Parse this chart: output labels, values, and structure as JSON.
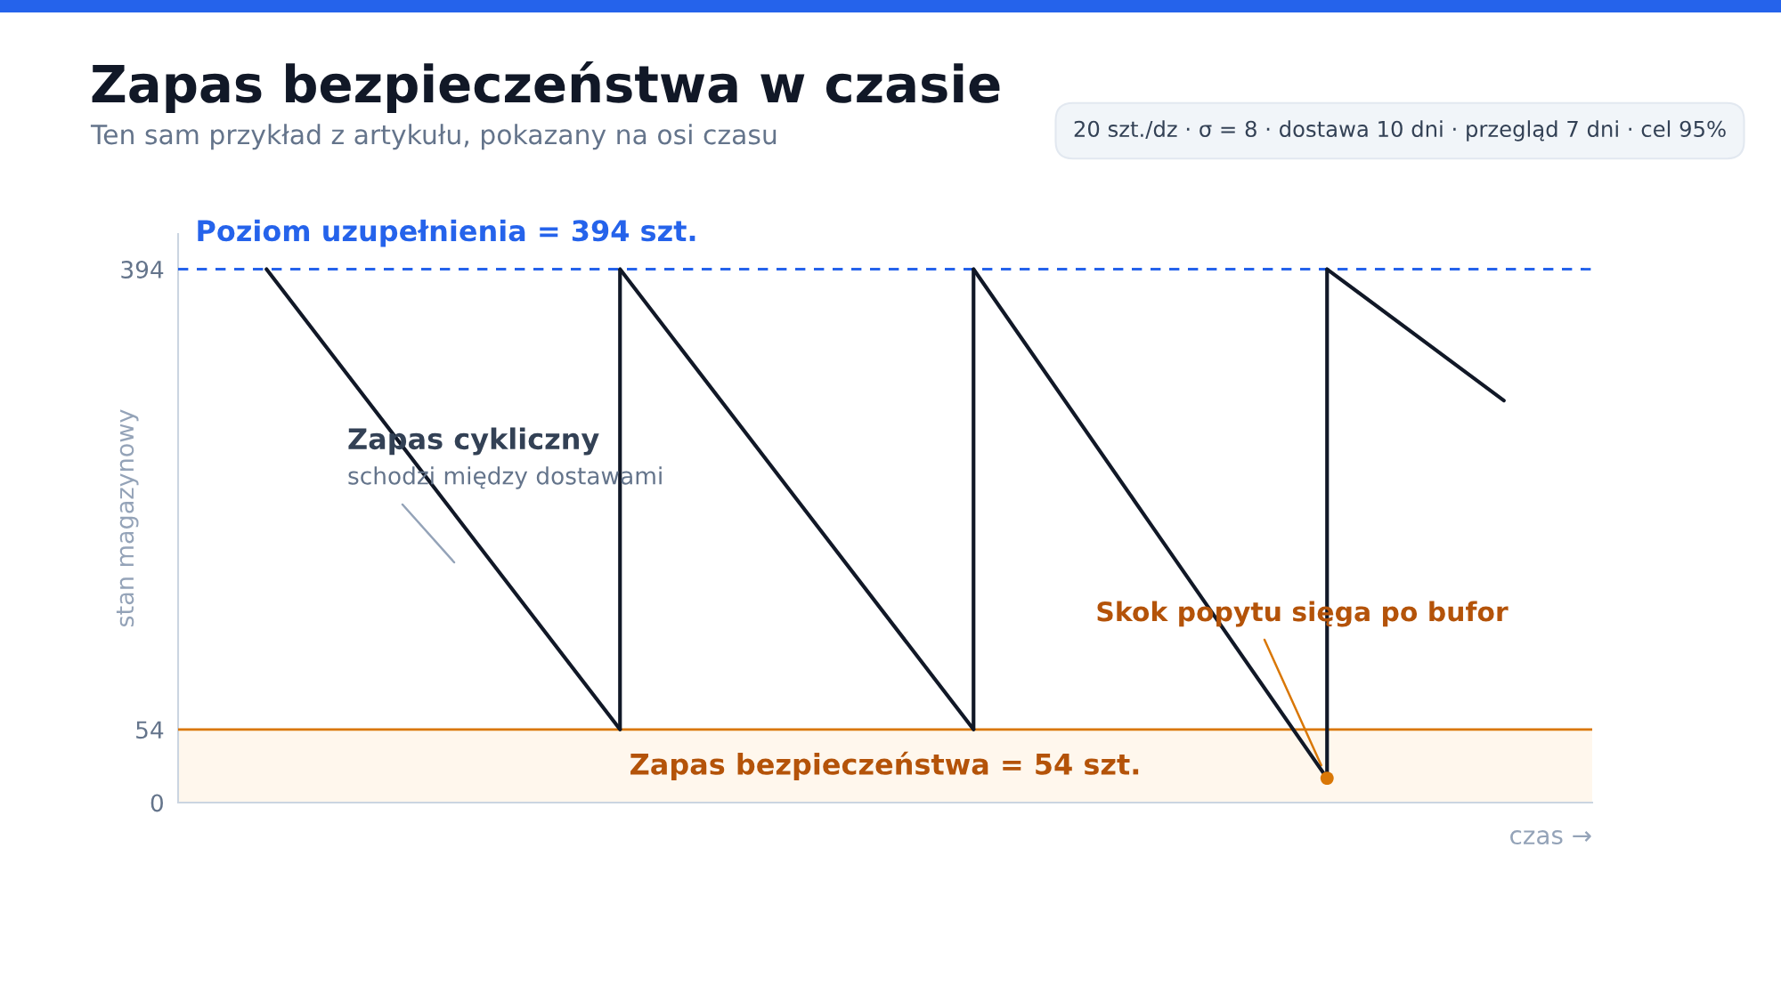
{
  "chart_data": {
    "type": "line",
    "title": "Zapas bezpieczeństwa w czasie",
    "subtitle": "Ten sam przykład z artykułu, pokazany na osi czasu",
    "xlabel": "czas →",
    "ylabel": "stan magazynowy",
    "categories": [
      null,
      null,
      null,
      null,
      null,
      null,
      null,
      null
    ],
    "series": [
      {
        "color": "#111827",
        "values": [
          394,
          224,
          54,
          null,
          null,
          null,
          null,
          null
        ]
      },
      {
        "color": "#111827",
        "values": [
          null,
          null,
          394,
          224,
          54,
          null,
          null,
          null
        ]
      },
      {
        "color": "#111827",
        "values": [
          null,
          null,
          null,
          null,
          394,
          206,
          18,
          null
        ]
      },
      {
        "color": "#111827",
        "values": [
          null,
          null,
          null,
          null,
          null,
          null,
          394,
          297
        ]
      },
      {
        "type": "bar",
        "color": "#111827",
        "base": [
          null,
          null,
          54,
          null,
          54,
          null,
          18,
          null
        ],
        "values": [
          null,
          null,
          340,
          null,
          340,
          null,
          376,
          null
        ]
      },
      {
        "type": "scatter",
        "color": "#d97706",
        "marker": "circle",
        "values": [
          null,
          null,
          null,
          null,
          null,
          null,
          18,
          null
        ]
      }
    ],
    "ylim": [
      0,
      420
    ],
    "yticks": [
      0,
      54,
      394
    ],
    "tick_labels": "y",
    "ref_lines": [
      {
        "axis": "y",
        "value": 394,
        "label": "Poziom uzupełnienia = 394 szt.",
        "color": "#2563eb",
        "line_style": "dashed"
      },
      {
        "axis": "y",
        "value": 54,
        "color": "#d97706",
        "line_style": "solid"
      }
    ],
    "bands": [
      {
        "axis": "y",
        "from": 0,
        "to": 54,
        "label": "Zapas bezpieczeństwa = 54 szt.",
        "color": "#fff7ed"
      }
    ],
    "annotations": [
      "Zapas cykliczny",
      "schodzi między dostawami",
      "Skok popytu sięga po bufor",
      "20 szt./dz · σ = 8 · dostawa 10 dni · przegląd 7 dni · cel 95%"
    ]
  }
}
